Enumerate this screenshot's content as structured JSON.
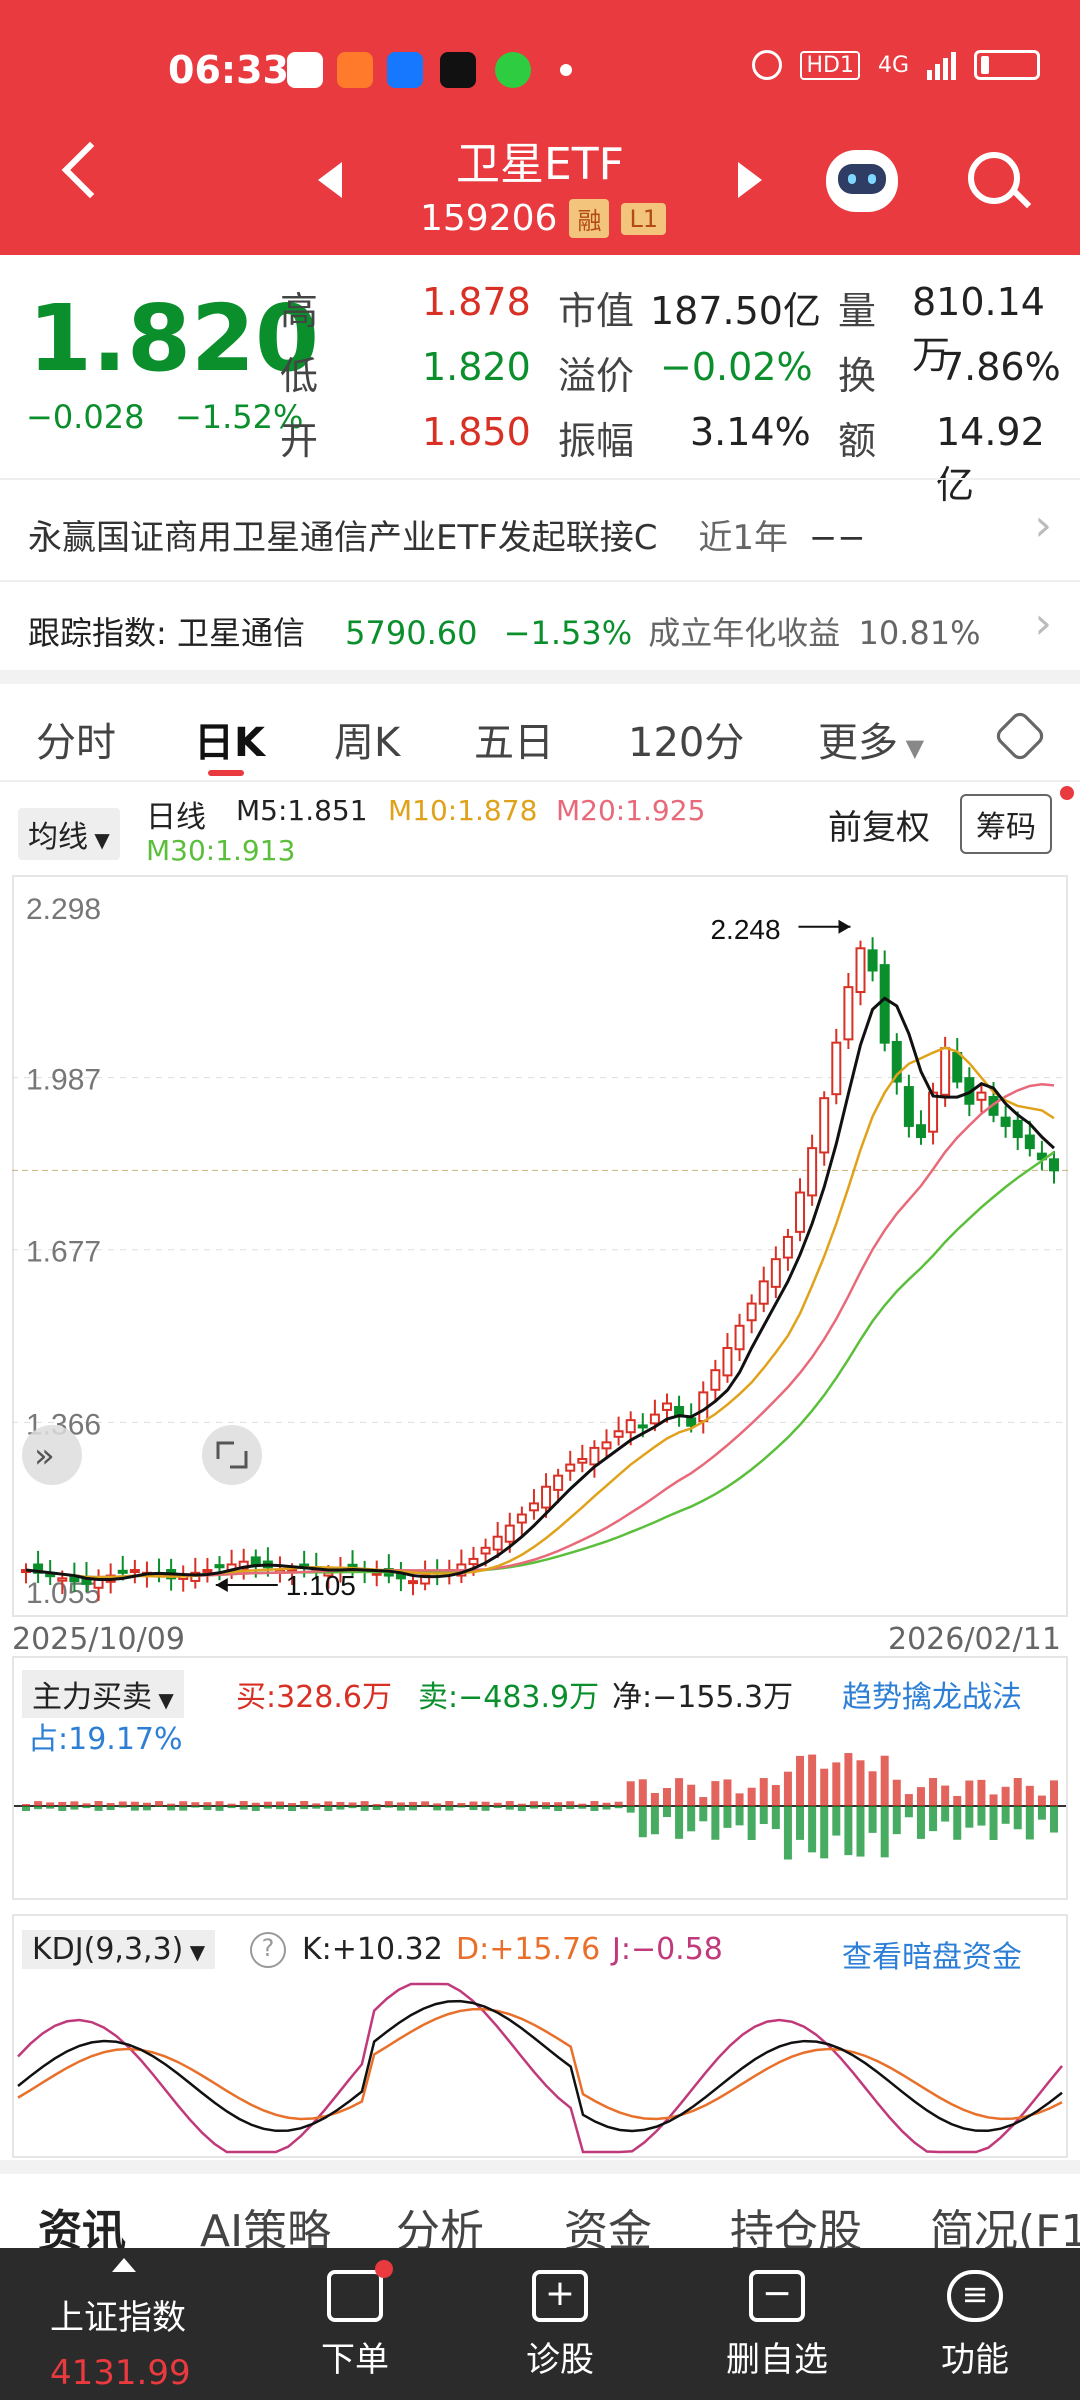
{
  "status_bar": {
    "time": "06:33",
    "network": "4G",
    "hd": "HD1"
  },
  "header": {
    "title": "卫星ETF",
    "code": "159206",
    "tag_margin": "融",
    "tag_level": "L1"
  },
  "quote": {
    "price": "1.820",
    "change": "−0.028",
    "change_pct": "−1.52%",
    "stats": [
      {
        "label": "高",
        "value": "1.878"
      },
      {
        "label": "低",
        "value": "1.820"
      },
      {
        "label": "开",
        "value": "1.850"
      },
      {
        "label": "市值",
        "value": "187.50亿"
      },
      {
        "label": "溢价",
        "value": "−0.02%"
      },
      {
        "label": "振幅",
        "value": "3.14%"
      },
      {
        "label": "量",
        "value": "810.14万"
      },
      {
        "label": "换",
        "value": "7.86%"
      },
      {
        "label": "额",
        "value": "14.92亿"
      }
    ]
  },
  "fund_link": {
    "name": "永赢国证商用卫星通信产业ETF发起联接C",
    "period": "近1年",
    "value": "−−"
  },
  "tracking": {
    "label": "跟踪指数: 卫星通信",
    "value": "5790.60",
    "change": "−1.53%",
    "annual_label": "成立年化收益",
    "annual": "10.81%"
  },
  "tabs": [
    "分时",
    "日K",
    "周K",
    "五日",
    "120分",
    "更多"
  ],
  "chart_header": {
    "ma_dropdown": "均线",
    "period": "日线",
    "m5": "M5:1.851",
    "m10": "M10:1.878",
    "m20": "M20:1.925",
    "m30": "M30:1.913",
    "adjust": "前复权",
    "chips": "筹码"
  },
  "chart_data": {
    "type": "candlestick",
    "y_ticks": [
      "2.298",
      "1.987",
      "1.677",
      "1.366",
      "1.055"
    ],
    "ylim": [
      1.055,
      2.298
    ],
    "high_marker": "2.248",
    "low_marker": "1.105",
    "date_start": "2025/10/09",
    "date_end": "2026/02/11",
    "colors": {
      "up": "#d93025",
      "down": "#0a8f2c",
      "m5": "#111111",
      "m10": "#e0a21a",
      "m20": "#e86a7a",
      "m30": "#5cbf3c"
    }
  },
  "flow_panel": {
    "dropdown": "主力买卖",
    "buy": "买:328.6万",
    "sell": "卖:−483.9万",
    "net": "净:−155.3万",
    "link": "趋势擒龙战法",
    "share": "占:19.17%"
  },
  "kdj_panel": {
    "dropdown": "KDJ(9,3,3)",
    "k": "K:+10.32",
    "d": "D:+15.76",
    "j": "J:−0.58",
    "link": "查看暗盘资金"
  },
  "bottom_tabs": [
    "资讯",
    "AI策略",
    "分析",
    "资金",
    "持仓股",
    "简况(F1"
  ],
  "nav": {
    "index_name": "上证指数",
    "index_value": "4131.99",
    "items": [
      "下单",
      "诊股",
      "删自选",
      "功能"
    ]
  }
}
